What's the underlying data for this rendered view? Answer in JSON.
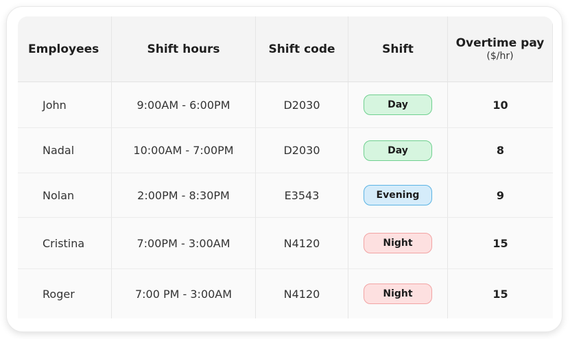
{
  "headers": {
    "employees": "Employees",
    "shift_hours": "Shift hours",
    "shift_code": "Shift code",
    "shift": "Shift",
    "overtime": "Overtime pay",
    "overtime_unit": "($/hr)"
  },
  "badge_colors": {
    "Day": {
      "bg": "#d6f5df",
      "border": "#6fd08f"
    },
    "Evening": {
      "bg": "#d5ecfa",
      "border": "#5ab3e4"
    },
    "Night": {
      "bg": "#fde0e0",
      "border": "#f2a3a3"
    }
  },
  "rows": [
    {
      "name": "John",
      "hours": "9:00AM - 6:00PM",
      "code": "D2030",
      "shift": "Day",
      "overtime": "10"
    },
    {
      "name": "Nadal",
      "hours": "10:00AM - 7:00PM",
      "code": "D2030",
      "shift": "Day",
      "overtime": "8"
    },
    {
      "name": "Nolan",
      "hours": "2:00PM - 8:30PM",
      "code": "E3543",
      "shift": "Evening",
      "overtime": "9"
    },
    {
      "name": "Cristina",
      "hours": "7:00PM - 3:00AM",
      "code": "N4120",
      "shift": "Night",
      "overtime": "15"
    },
    {
      "name": "Roger",
      "hours": "7:00 PM - 3:00AM",
      "code": "N4120",
      "shift": "Night",
      "overtime": "15"
    }
  ]
}
